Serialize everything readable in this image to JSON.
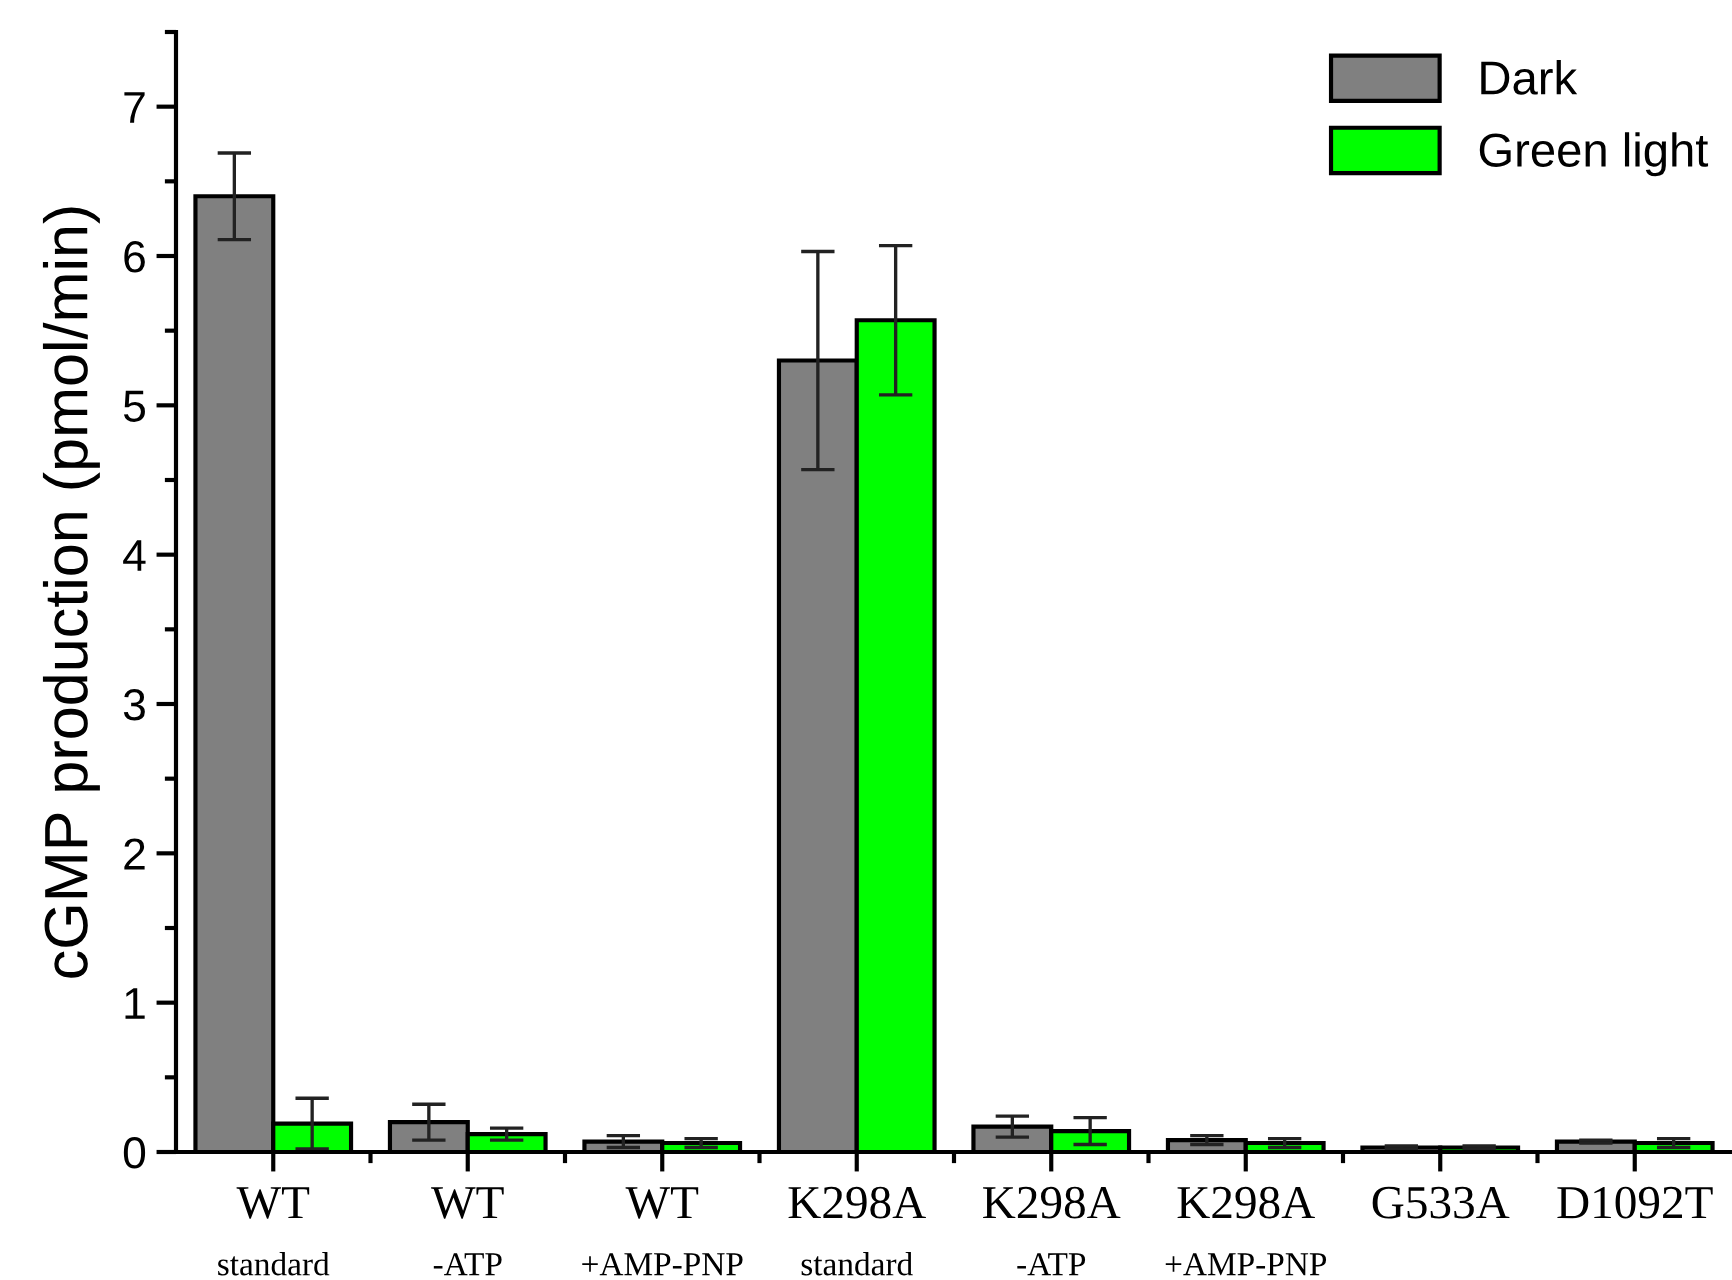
{
  "chart_data": {
    "type": "bar",
    "ylabel": "cGMP production (pmol/min)",
    "categories": [
      "WT\nstandard",
      "WT\n-ATP",
      "WT\n+AMP-PNP",
      "K298A\nstandard",
      "K298A\n-ATP",
      "K298A\n+AMP-PNP",
      "G533A",
      "D1092T"
    ],
    "series": [
      {
        "name": "Dark",
        "color": "#808080",
        "values": [
          6.4,
          0.2,
          0.07,
          5.3,
          0.17,
          0.08,
          0.03,
          0.07
        ],
        "errors": [
          0.29,
          0.12,
          0.04,
          0.73,
          0.07,
          0.03,
          0.01,
          0.01
        ]
      },
      {
        "name": "Green light",
        "color": "#00ff00",
        "values": [
          0.19,
          0.12,
          0.06,
          5.57,
          0.14,
          0.06,
          0.03,
          0.06
        ],
        "errors": [
          0.17,
          0.04,
          0.03,
          0.5,
          0.09,
          0.03,
          0.01,
          0.03
        ]
      }
    ],
    "ylim": [
      0,
      7.5
    ],
    "yticks": [
      0,
      1,
      2,
      3,
      4,
      5,
      6,
      7
    ],
    "legend": "top right",
    "grid": false
  }
}
